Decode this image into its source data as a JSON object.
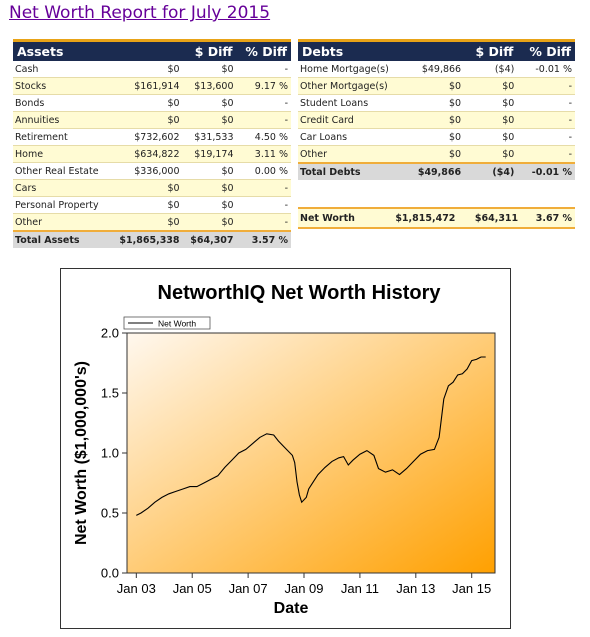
{
  "title": "Net Worth Report for July 2015",
  "assets": {
    "headers": [
      "Assets",
      "$ Diff",
      "% Diff"
    ],
    "rows": [
      {
        "name": "Cash",
        "value": "$0",
        "diff": "$0",
        "pct": "-"
      },
      {
        "name": "Stocks",
        "value": "$161,914",
        "diff": "$13,600",
        "pct": "9.17 %"
      },
      {
        "name": "Bonds",
        "value": "$0",
        "diff": "$0",
        "pct": "-"
      },
      {
        "name": "Annuities",
        "value": "$0",
        "diff": "$0",
        "pct": "-"
      },
      {
        "name": "Retirement",
        "value": "$732,602",
        "diff": "$31,533",
        "pct": "4.50 %"
      },
      {
        "name": "Home",
        "value": "$634,822",
        "diff": "$19,174",
        "pct": "3.11 %"
      },
      {
        "name": "Other Real Estate",
        "value": "$336,000",
        "diff": "$0",
        "pct": "0.00 %"
      },
      {
        "name": "Cars",
        "value": "$0",
        "diff": "$0",
        "pct": "-"
      },
      {
        "name": "Personal Property",
        "value": "$0",
        "diff": "$0",
        "pct": "-"
      },
      {
        "name": "Other",
        "value": "$0",
        "diff": "$0",
        "pct": "-"
      }
    ],
    "total": {
      "name": "Total Assets",
      "value": "$1,865,338",
      "diff": "$64,307",
      "pct": "3.57 %"
    }
  },
  "debts": {
    "headers": [
      "Debts",
      "$ Diff",
      "% Diff"
    ],
    "rows": [
      {
        "name": "Home Mortgage(s)",
        "value": "$49,866",
        "diff": "($4)",
        "pct": "-0.01 %"
      },
      {
        "name": "Other Mortgage(s)",
        "value": "$0",
        "diff": "$0",
        "pct": "-"
      },
      {
        "name": "Student Loans",
        "value": "$0",
        "diff": "$0",
        "pct": "-"
      },
      {
        "name": "Credit Card",
        "value": "$0",
        "diff": "$0",
        "pct": "-"
      },
      {
        "name": "Car Loans",
        "value": "$0",
        "diff": "$0",
        "pct": "-"
      },
      {
        "name": "Other",
        "value": "$0",
        "diff": "$0",
        "pct": "-"
      }
    ],
    "total": {
      "name": "Total Debts",
      "value": "$49,866",
      "diff": "($4)",
      "pct": "-0.01 %"
    }
  },
  "net_worth": {
    "name": "Net Worth",
    "value": "$1,815,472",
    "diff": "$64,311",
    "pct": "3.67 %"
  },
  "colors": {
    "header_bg": "#1b2b50",
    "header_accent": "#e8a317",
    "row_alt": "#fffbd3",
    "total_bg": "#d9d9d9",
    "title": "#660099",
    "gradient_start": "#fff8ef",
    "gradient_end": "#ffa000"
  },
  "chart_data": {
    "type": "line",
    "title": "NetworthIQ Net Worth History",
    "xlabel": "Date",
    "ylabel": "Net Worth ($1,000,000's)",
    "legend": "top-left",
    "grid": false,
    "xlim": [
      "2002-09",
      "2015-11"
    ],
    "ylim": [
      0,
      2.0
    ],
    "yticks": [
      0.0,
      0.5,
      1.0,
      1.5,
      2.0
    ],
    "ytick_labels": [
      "0.0",
      "0.5",
      "1.0",
      "1.5",
      "2.0"
    ],
    "xticks": [
      "2003-01",
      "2005-01",
      "2007-01",
      "2009-01",
      "2011-01",
      "2013-01",
      "2015-01"
    ],
    "xtick_labels": [
      "Jan 03",
      "Jan 05",
      "Jan 07",
      "Jan 09",
      "Jan 11",
      "Jan 13",
      "Jan 15"
    ],
    "series": [
      {
        "name": "Net Worth",
        "x": [
          "2003-01",
          "2003-03",
          "2003-06",
          "2003-09",
          "2003-12",
          "2004-03",
          "2004-06",
          "2004-09",
          "2004-12",
          "2005-03",
          "2005-06",
          "2005-09",
          "2005-12",
          "2006-03",
          "2006-06",
          "2006-09",
          "2006-12",
          "2007-03",
          "2007-06",
          "2007-09",
          "2007-12",
          "2008-02",
          "2008-05",
          "2008-08",
          "2008-09",
          "2008-10",
          "2008-11",
          "2008-12",
          "2009-02",
          "2009-03",
          "2009-05",
          "2009-07",
          "2009-10",
          "2010-01",
          "2010-04",
          "2010-06",
          "2010-08",
          "2010-10",
          "2011-01",
          "2011-04",
          "2011-07",
          "2011-09",
          "2011-12",
          "2012-03",
          "2012-06",
          "2012-09",
          "2012-12",
          "2013-03",
          "2013-06",
          "2013-09",
          "2013-11",
          "2014-01",
          "2014-03",
          "2014-05",
          "2014-07",
          "2014-09",
          "2014-11",
          "2015-01",
          "2015-03",
          "2015-05",
          "2015-07"
        ],
        "values": [
          0.48,
          0.5,
          0.54,
          0.59,
          0.63,
          0.66,
          0.68,
          0.7,
          0.72,
          0.72,
          0.75,
          0.78,
          0.81,
          0.88,
          0.94,
          1.0,
          1.03,
          1.08,
          1.13,
          1.16,
          1.15,
          1.1,
          1.04,
          0.98,
          0.92,
          0.76,
          0.65,
          0.59,
          0.63,
          0.7,
          0.76,
          0.82,
          0.88,
          0.93,
          0.96,
          0.97,
          0.9,
          0.94,
          0.99,
          1.02,
          0.98,
          0.87,
          0.84,
          0.86,
          0.82,
          0.87,
          0.93,
          0.99,
          1.02,
          1.03,
          1.13,
          1.45,
          1.56,
          1.59,
          1.65,
          1.66,
          1.7,
          1.77,
          1.78,
          1.8,
          1.8
        ]
      }
    ]
  }
}
